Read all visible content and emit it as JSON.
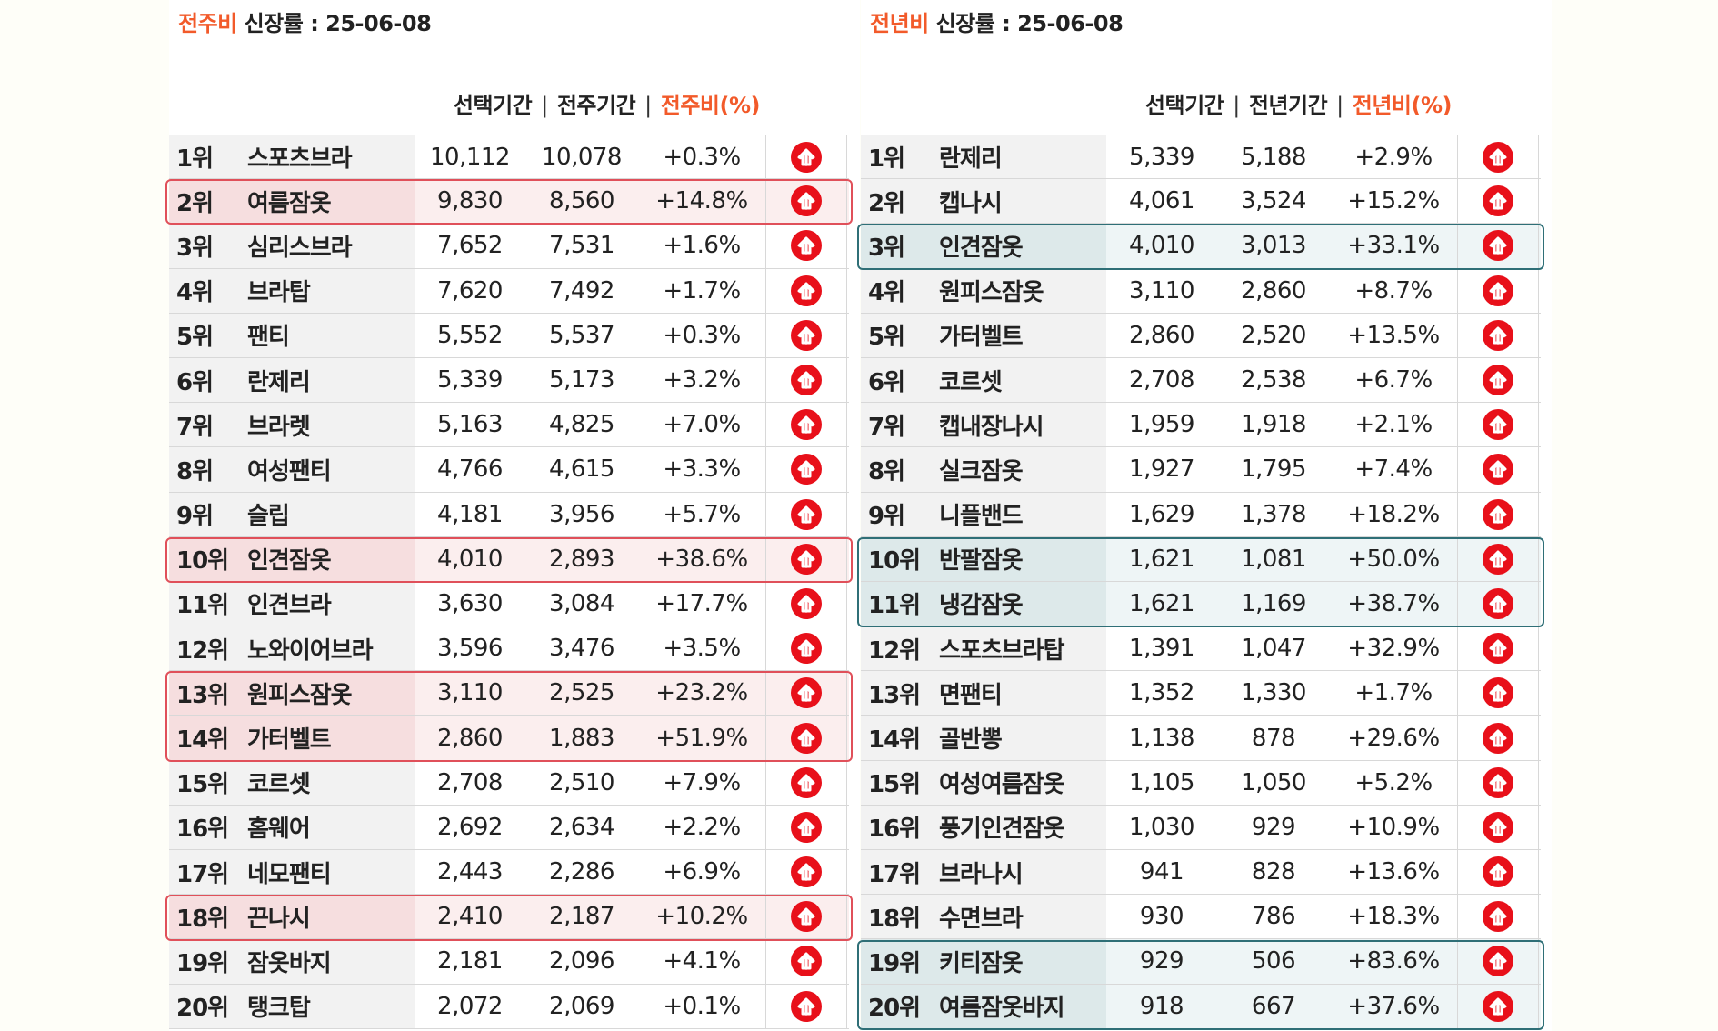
{
  "weekly": {
    "title_accent": "전주비",
    "title_rest": " 신장률 : 25-06-08",
    "headers": {
      "sel": "선택기간",
      "sep1": "|",
      "prev": "전주기간",
      "sep2": "|",
      "pct": "전주비(%)"
    },
    "rows": [
      {
        "rank": "1위",
        "name": "스포츠브라",
        "cur": "10,112",
        "prev": "10,078",
        "pct": "+0.3%"
      },
      {
        "rank": "2위",
        "name": "여름잠옷",
        "cur": "9,830",
        "prev": "8,560",
        "pct": "+14.8%"
      },
      {
        "rank": "3위",
        "name": "심리스브라",
        "cur": "7,652",
        "prev": "7,531",
        "pct": "+1.6%"
      },
      {
        "rank": "4위",
        "name": "브라탑",
        "cur": "7,620",
        "prev": "7,492",
        "pct": "+1.7%"
      },
      {
        "rank": "5위",
        "name": "팬티",
        "cur": "5,552",
        "prev": "5,537",
        "pct": "+0.3%"
      },
      {
        "rank": "6위",
        "name": "란제리",
        "cur": "5,339",
        "prev": "5,173",
        "pct": "+3.2%"
      },
      {
        "rank": "7위",
        "name": "브라렛",
        "cur": "5,163",
        "prev": "4,825",
        "pct": "+7.0%"
      },
      {
        "rank": "8위",
        "name": "여성팬티",
        "cur": "4,766",
        "prev": "4,615",
        "pct": "+3.3%"
      },
      {
        "rank": "9위",
        "name": "슬립",
        "cur": "4,181",
        "prev": "3,956",
        "pct": "+5.7%"
      },
      {
        "rank": "10위",
        "name": "인견잠옷",
        "cur": "4,010",
        "prev": "2,893",
        "pct": "+38.6%"
      },
      {
        "rank": "11위",
        "name": "인견브라",
        "cur": "3,630",
        "prev": "3,084",
        "pct": "+17.7%"
      },
      {
        "rank": "12위",
        "name": "노와이어브라",
        "cur": "3,596",
        "prev": "3,476",
        "pct": "+3.5%"
      },
      {
        "rank": "13위",
        "name": "원피스잠옷",
        "cur": "3,110",
        "prev": "2,525",
        "pct": "+23.2%"
      },
      {
        "rank": "14위",
        "name": "가터벨트",
        "cur": "2,860",
        "prev": "1,883",
        "pct": "+51.9%"
      },
      {
        "rank": "15위",
        "name": "코르셋",
        "cur": "2,708",
        "prev": "2,510",
        "pct": "+7.9%"
      },
      {
        "rank": "16위",
        "name": "홈웨어",
        "cur": "2,692",
        "prev": "2,634",
        "pct": "+2.2%"
      },
      {
        "rank": "17위",
        "name": "네모팬티",
        "cur": "2,443",
        "prev": "2,286",
        "pct": "+6.9%"
      },
      {
        "rank": "18위",
        "name": "끈나시",
        "cur": "2,410",
        "prev": "2,187",
        "pct": "+10.2%"
      },
      {
        "rank": "19위",
        "name": "잠옷바지",
        "cur": "2,181",
        "prev": "2,096",
        "pct": "+4.1%"
      },
      {
        "rank": "20위",
        "name": "탱크탑",
        "cur": "2,072",
        "prev": "2,069",
        "pct": "+0.1%"
      }
    ]
  },
  "yearly": {
    "title_accent": "전년비",
    "title_rest": " 신장률 : 25-06-08",
    "headers": {
      "sel": "선택기간",
      "sep1": "|",
      "prev": "전년기간",
      "sep2": "|",
      "pct": "전년비(%)"
    },
    "rows": [
      {
        "rank": "1위",
        "name": "란제리",
        "cur": "5,339",
        "prev": "5,188",
        "pct": "+2.9%"
      },
      {
        "rank": "2위",
        "name": "캡나시",
        "cur": "4,061",
        "prev": "3,524",
        "pct": "+15.2%"
      },
      {
        "rank": "3위",
        "name": "인견잠옷",
        "cur": "4,010",
        "prev": "3,013",
        "pct": "+33.1%"
      },
      {
        "rank": "4위",
        "name": "원피스잠옷",
        "cur": "3,110",
        "prev": "2,860",
        "pct": "+8.7%"
      },
      {
        "rank": "5위",
        "name": "가터벨트",
        "cur": "2,860",
        "prev": "2,520",
        "pct": "+13.5%"
      },
      {
        "rank": "6위",
        "name": "코르셋",
        "cur": "2,708",
        "prev": "2,538",
        "pct": "+6.7%"
      },
      {
        "rank": "7위",
        "name": "캡내장나시",
        "cur": "1,959",
        "prev": "1,918",
        "pct": "+2.1%"
      },
      {
        "rank": "8위",
        "name": "실크잠옷",
        "cur": "1,927",
        "prev": "1,795",
        "pct": "+7.4%"
      },
      {
        "rank": "9위",
        "name": "니플밴드",
        "cur": "1,629",
        "prev": "1,378",
        "pct": "+18.2%"
      },
      {
        "rank": "10위",
        "name": "반팔잠옷",
        "cur": "1,621",
        "prev": "1,081",
        "pct": "+50.0%"
      },
      {
        "rank": "11위",
        "name": "냉감잠옷",
        "cur": "1,621",
        "prev": "1,169",
        "pct": "+38.7%"
      },
      {
        "rank": "12위",
        "name": "스포츠브라탑",
        "cur": "1,391",
        "prev": "1,047",
        "pct": "+32.9%"
      },
      {
        "rank": "13위",
        "name": "면팬티",
        "cur": "1,352",
        "prev": "1,330",
        "pct": "+1.7%"
      },
      {
        "rank": "14위",
        "name": "골반뽕",
        "cur": "1,138",
        "prev": "878",
        "pct": "+29.6%"
      },
      {
        "rank": "15위",
        "name": "여성여름잠옷",
        "cur": "1,105",
        "prev": "1,050",
        "pct": "+5.2%"
      },
      {
        "rank": "16위",
        "name": "풍기인견잠옷",
        "cur": "1,030",
        "prev": "929",
        "pct": "+10.9%"
      },
      {
        "rank": "17위",
        "name": "브라나시",
        "cur": "941",
        "prev": "828",
        "pct": "+13.6%"
      },
      {
        "rank": "18위",
        "name": "수면브라",
        "cur": "930",
        "prev": "786",
        "pct": "+18.3%"
      },
      {
        "rank": "19위",
        "name": "키티잠옷",
        "cur": "929",
        "prev": "506",
        "pct": "+83.6%"
      },
      {
        "rank": "20위",
        "name": "여름잠옷바지",
        "cur": "918",
        "prev": "667",
        "pct": "+37.6%"
      }
    ]
  },
  "colors": {
    "accent": "#f25a2a",
    "up_icon": "#e8101a",
    "highlight_red": "#e0505a",
    "highlight_teal": "#2f6f77"
  },
  "icons": {
    "trend": "up-arrow-icon"
  }
}
